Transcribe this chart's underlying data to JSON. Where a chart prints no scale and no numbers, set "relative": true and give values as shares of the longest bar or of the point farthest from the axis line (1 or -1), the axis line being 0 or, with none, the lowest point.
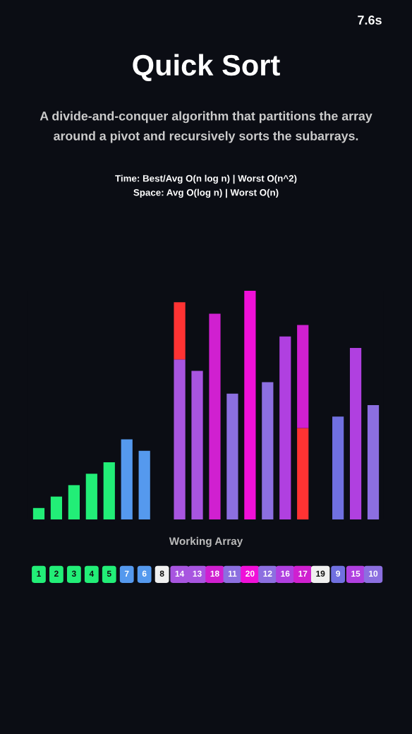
{
  "chart_data": {
    "type": "bar",
    "title": "Quick Sort",
    "subtitle": "A divide-and-conquer algorithm that partitions the array\naround a pivot and recursively sorts the subarrays.",
    "annotations": [
      "7.6s",
      "Time: Best/Avg O(n log n) | Worst O(n^2)",
      "Space: Avg O(log n) | Worst O(n)"
    ],
    "xlabel": "Working Array",
    "relative": true,
    "stacked": true,
    "categories": [
      "1",
      "2",
      "3",
      "4",
      "5",
      "7",
      "6",
      "8",
      "14",
      "13",
      "18",
      "11",
      "20",
      "12",
      "16",
      "17",
      "19",
      "9",
      "15",
      "10"
    ],
    "series": [
      {
        "values": [
          0.05,
          0.1,
          0.15,
          0.2,
          0.25,
          0.35,
          0.3,
          null,
          0.7,
          0.65,
          0.9,
          0.55,
          1.0,
          0.6,
          0.8,
          0.4,
          null,
          0.45,
          0.75,
          0.5
        ],
        "colors": [
          "#22ee77",
          "#22ee77",
          "#22ee77",
          "#22ee77",
          "#22ee77",
          "#5599ee",
          "#5599ee",
          "#f0f0f0",
          "#a855e0",
          "#a855e0",
          "#d020d0",
          "#8c6fe0",
          "#f010d8",
          "#8c6fe0",
          "#b040e0",
          "#ff3333",
          "#f0f0f0",
          "#7070e0",
          "#b040e0",
          "#8c6fe0"
        ]
      },
      {
        "values": [
          null,
          null,
          null,
          null,
          null,
          null,
          null,
          null,
          0.25,
          null,
          null,
          null,
          null,
          null,
          null,
          0.45,
          null,
          null,
          null,
          null
        ],
        "colors": [
          "#22ee77",
          "#22ee77",
          "#22ee77",
          "#22ee77",
          "#22ee77",
          "#5599ee",
          "#5599ee",
          "#f0f0f0",
          "#ff3333",
          "#a855e0",
          "#d020d0",
          "#8c6fe0",
          "#f010d8",
          "#8c6fe0",
          "#b040e0",
          "#d020d0",
          "#f0f0f0",
          "#7070e0",
          "#b040e0",
          "#8c6fe0"
        ]
      }
    ]
  }
}
